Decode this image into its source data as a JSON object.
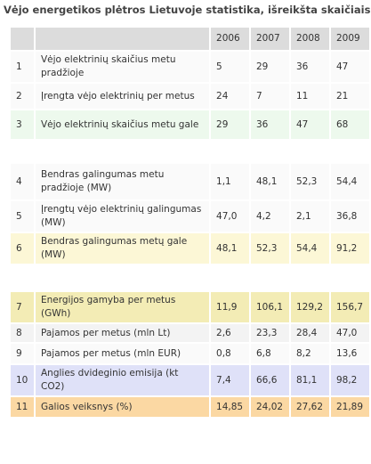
{
  "header": {
    "title": "Vėjo energetikos plėtros Lietuvoje statistika, išreikšta skaičiais"
  },
  "table": {
    "columns": [
      "2006",
      "2007",
      "2008",
      "2009"
    ],
    "rows": [
      {
        "num": "1",
        "label": "Vėjo elektrinių skaičius metu pradžioje",
        "values": [
          "5",
          "29",
          "36",
          "47"
        ]
      },
      {
        "num": "2",
        "label": "Įrengta vėjo elektrinių per metus",
        "values": [
          "24",
          "7",
          "11",
          "21"
        ]
      },
      {
        "num": "3",
        "label": "Vėjo elektrinių skaičius metu gale",
        "values": [
          "29",
          "36",
          "47",
          "68"
        ]
      },
      {
        "num": "4",
        "label": "Bendras galingumas metu pradžioje (MW)",
        "values": [
          "1,1",
          "48,1",
          "52,3",
          "54,4"
        ]
      },
      {
        "num": "5",
        "label": "Įrengtų vėjo elektrinių galingumas (MW)",
        "values": [
          "47,0",
          "4,2",
          "2,1",
          "36,8"
        ]
      },
      {
        "num": "6",
        "label": "Bendras galingumas metų gale (MW)",
        "values": [
          "48,1",
          "52,3",
          "54,4",
          "91,2"
        ]
      },
      {
        "num": "7",
        "label": "Energijos gamyba per metus (GWh)",
        "values": [
          "11,9",
          "106,1",
          "129,2",
          "156,7"
        ]
      },
      {
        "num": "8",
        "label": "Pajamos per metus (mln Lt)",
        "values": [
          "2,6",
          "23,3",
          "28,4",
          "47,0"
        ]
      },
      {
        "num": "9",
        "label": "Pajamos per metus (mln EUR)",
        "values": [
          "0,8",
          "6,8",
          "8,2",
          "13,6"
        ]
      },
      {
        "num": "10",
        "label": "Anglies dvideginio emisija (kt CO2)",
        "values": [
          "7,4",
          "66,6",
          "81,1",
          "98,2"
        ]
      },
      {
        "num": "11",
        "label": "Galios veiksnys (%)",
        "values": [
          "14,85",
          "24,02",
          "27,62",
          "21,89"
        ]
      }
    ]
  }
}
